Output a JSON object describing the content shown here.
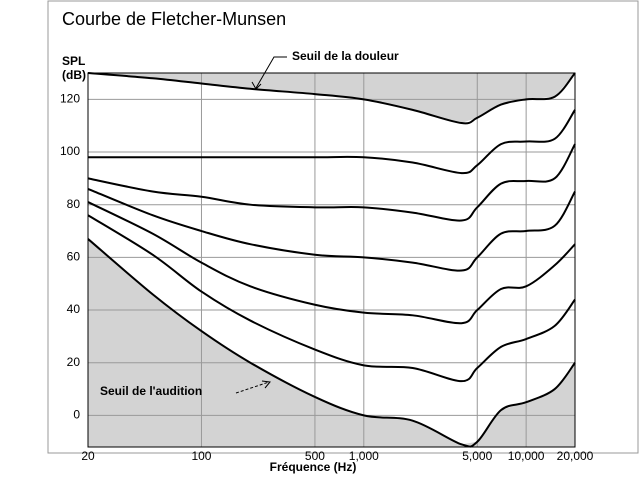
{
  "chart_data": {
    "type": "line",
    "title": "Courbe de Fletcher-Munsen",
    "y_label": [
      "SPL",
      "(dB)"
    ],
    "x_label": "Fréquence (Hz)",
    "x_scale": "log",
    "grid": true,
    "color": "#000000",
    "shade_color": "#d3d3d3",
    "xlim": [
      20,
      20000
    ],
    "ylim": [
      -12,
      130
    ],
    "xticks": [
      20,
      100,
      500,
      {
        "value": 1000,
        "label": "1,000"
      },
      {
        "value": 5000,
        "label": "5,000"
      },
      {
        "value": 10000,
        "label": "10,000"
      },
      {
        "value": 20000,
        "label": "20,000"
      }
    ],
    "yticks": [
      0,
      20,
      40,
      60,
      80,
      100,
      120
    ],
    "x": [
      20,
      50,
      100,
      200,
      500,
      1000,
      2000,
      4000,
      5000,
      7000,
      10000,
      15000,
      20000
    ],
    "series": [
      {
        "values": [
          130,
          128,
          126,
          124,
          122,
          120,
          116,
          111,
          113,
          118,
          120,
          121,
          130
        ]
      },
      {
        "values": [
          98,
          98,
          98,
          98,
          98,
          98,
          96,
          92,
          95,
          103,
          104,
          105,
          116
        ]
      },
      {
        "values": [
          90,
          85,
          83,
          80,
          79,
          79,
          77,
          74,
          79,
          88,
          89,
          90,
          103
        ]
      },
      {
        "values": [
          86,
          76,
          70,
          65,
          61,
          60,
          58,
          55,
          60,
          69,
          70,
          72,
          85
        ]
      },
      {
        "values": [
          81,
          69,
          58,
          49,
          42,
          39,
          38,
          35,
          40,
          48,
          49,
          57,
          65
        ]
      },
      {
        "values": [
          76,
          61,
          47,
          36,
          25,
          19,
          18,
          13,
          18,
          26,
          29,
          34,
          44
        ]
      },
      {
        "values": [
          67,
          46,
          32,
          20,
          7,
          0,
          -2,
          -11,
          -10,
          2,
          5,
          10,
          20
        ]
      }
    ],
    "annotations": [
      "Seuil de la douleur",
      "Seuil de l'audition"
    ]
  }
}
